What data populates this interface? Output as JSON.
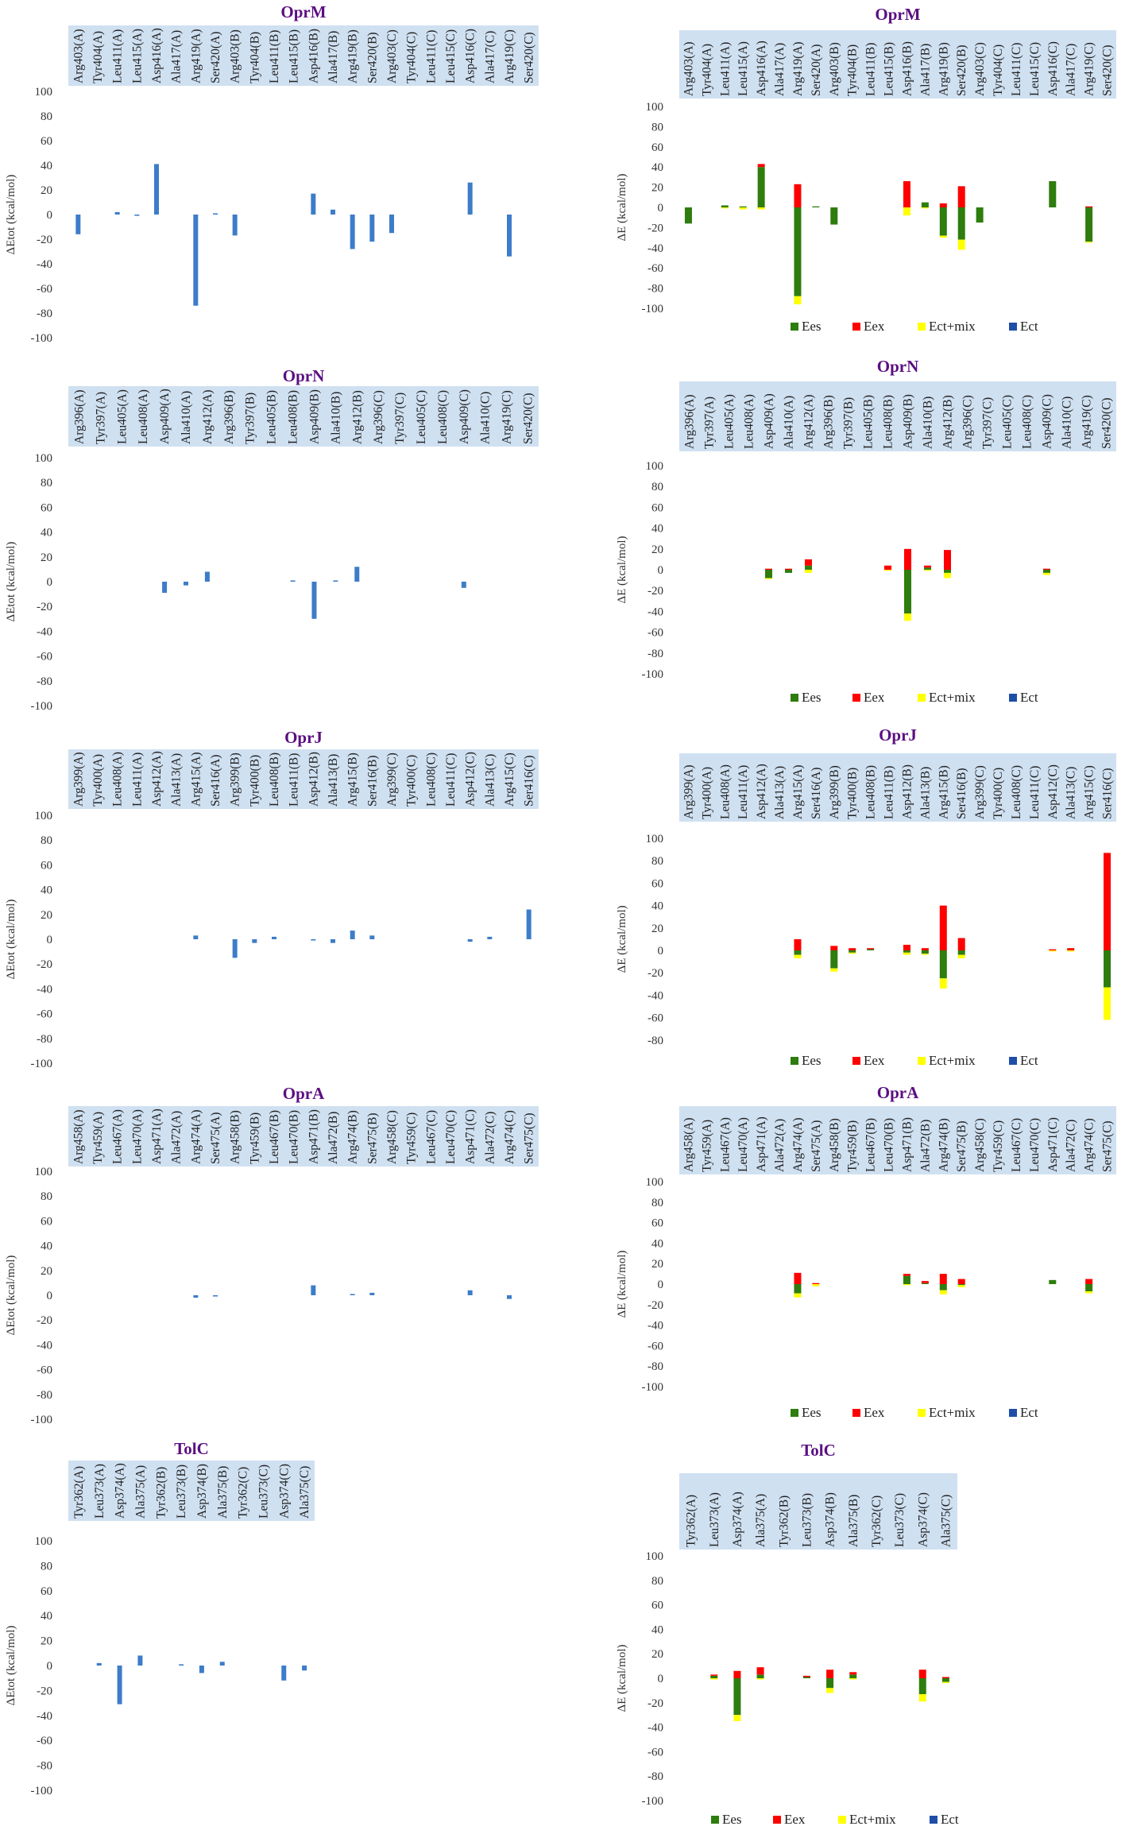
{
  "colors": {
    "bar": "#3d7cc9",
    "Ees": "#2e7d0e",
    "Eex": "#ff0000",
    "Ect+mix": "#ffff00",
    "Ect": "#1f4ea8",
    "labelBand": "#cfe0f1",
    "title": "#5b0f82"
  },
  "chart_data": [
    {
      "id": "oprm-tot",
      "type": "bar",
      "title": "OprM",
      "ylabel": "ΔEtot (kcal/mol)",
      "ylim": [
        -100,
        100
      ],
      "yticks": [
        100,
        80,
        60,
        40,
        20,
        0,
        -20,
        -40,
        -60,
        -80,
        -100
      ],
      "categories": [
        "Arg403(A)",
        "Tyr404(A)",
        "Leu411(A)",
        "Leu415(A)",
        "Asp416(A)",
        "Ala417(A)",
        "Arg419(A)",
        "Ser420(A)",
        "Arg403(B)",
        "Tyr404(B)",
        "Leu411(B)",
        "Leu415(B)",
        "Asp416(B)",
        "Ala417(B)",
        "Arg419(B)",
        "Ser420(B)",
        "Arg403(C)",
        "Tyr404(C)",
        "Leu411(C)",
        "Leu415(C)",
        "Asp416(C)",
        "Ala417(C)",
        "Arg419(C)",
        "Ser420(C)"
      ],
      "values": [
        -16,
        0,
        2,
        -1,
        41,
        0,
        -74,
        1,
        -17,
        0,
        0,
        0,
        17,
        4,
        -28,
        -22,
        -15,
        0,
        0,
        0,
        26,
        0,
        -34,
        0
      ]
    },
    {
      "id": "oprm-comp",
      "type": "bar",
      "stacked": true,
      "title": "OprM",
      "ylabel": "ΔE (kcal/mol)",
      "ylim": [
        -100,
        100
      ],
      "yticks": [
        100,
        80,
        60,
        40,
        20,
        0,
        -20,
        -40,
        -60,
        -80,
        -100
      ],
      "legend": [
        "Ees",
        "Eex",
        "Ect+mix",
        "Ect"
      ],
      "categories": [
        "Arg403(A)",
        "Tyr404(A)",
        "Leu411(A)",
        "Leu415(A)",
        "Asp416(A)",
        "Ala417(A)",
        "Arg419(A)",
        "Ser420(A)",
        "Arg403(B)",
        "Tyr404(B)",
        "Leu411(B)",
        "Leu415(B)",
        "Asp416(B)",
        "Ala417(B)",
        "Arg419(B)",
        "Ser420(B)",
        "Arg403(C)",
        "Tyr404(C)",
        "Leu411(C)",
        "Leu415(C)",
        "Asp416(C)",
        "Ala417(C)",
        "Arg419(C)",
        "Ser420(C)"
      ],
      "series": [
        {
          "name": "Ees",
          "values": [
            -16,
            0,
            2,
            1,
            40,
            0,
            -88,
            1,
            -17,
            0,
            0,
            0,
            0,
            5,
            -28,
            -32,
            -15,
            0,
            0,
            0,
            26,
            0,
            -34,
            0
          ]
        },
        {
          "name": "Eex",
          "values": [
            0,
            0,
            0,
            0,
            3,
            0,
            23,
            0,
            0,
            0,
            0,
            0,
            26,
            0,
            4,
            21,
            0,
            0,
            0,
            0,
            0,
            0,
            1,
            0
          ]
        },
        {
          "name": "Ect+mix",
          "values": [
            0,
            0,
            -1,
            -2,
            -2,
            0,
            -8,
            0,
            0,
            0,
            0,
            0,
            -8,
            -1,
            -2,
            -10,
            0,
            0,
            0,
            0,
            0,
            0,
            -1,
            0
          ]
        },
        {
          "name": "Ect",
          "values": [
            0,
            0,
            0,
            0,
            0,
            0,
            0,
            0,
            0,
            0,
            0,
            0,
            0,
            0,
            0,
            0,
            0,
            0,
            0,
            0,
            0,
            0,
            0,
            0
          ]
        }
      ]
    },
    {
      "id": "oprn-tot",
      "type": "bar",
      "title": "OprN",
      "ylabel": "ΔEtot (kcal/mol)",
      "ylim": [
        -100,
        100
      ],
      "yticks": [
        100,
        80,
        60,
        40,
        20,
        0,
        -20,
        -40,
        -60,
        -80,
        -100
      ],
      "categories": [
        "Arg396(A)",
        "Tyr397(A)",
        "Leu405(A)",
        "Leu408(A)",
        "Asp409(A)",
        "Ala410(A)",
        "Arg412(A)",
        "Arg396(B)",
        "Tyr397(B)",
        "Leu405(B)",
        "Leu408(B)",
        "Asp409(B)",
        "Ala410(B)",
        "Arg412(B)",
        "Arg396(C)",
        "Tyr397(C)",
        "Leu405(C)",
        "Leu408(C)",
        "Asp409(C)",
        "Ala410(C)",
        "Arg419(C)",
        "Ser420(C)"
      ],
      "values": [
        0,
        0,
        0,
        0,
        -9,
        -3,
        8,
        0,
        0,
        0,
        1,
        -30,
        1,
        12,
        0,
        0,
        0,
        0,
        -5,
        0,
        0,
        0
      ]
    },
    {
      "id": "oprn-comp",
      "type": "bar",
      "stacked": true,
      "title": "OprN",
      "ylabel": "ΔE (kcal/mol)",
      "ylim": [
        -100,
        100
      ],
      "yticks": [
        100,
        80,
        60,
        40,
        20,
        0,
        -20,
        -40,
        -60,
        -80,
        -100
      ],
      "legend": [
        "Ees",
        "Eex",
        "Ect+mix",
        "Ect"
      ],
      "categories": [
        "Arg396(A)",
        "Tyr397(A)",
        "Leu405(A)",
        "Leu408(A)",
        "Asp409(A)",
        "Ala410(A)",
        "Arg412(A)",
        "Arg396(B)",
        "Tyr397(B)",
        "Leu405(B)",
        "Leu408(B)",
        "Asp409(B)",
        "Ala410(B)",
        "Arg412(B)",
        "Arg396(C)",
        "Tyr397(C)",
        "Leu405(C)",
        "Leu408(C)",
        "Asp409(C)",
        "Ala410(C)",
        "Arg419(C)",
        "Ser420(C)"
      ],
      "series": [
        {
          "name": "Ees",
          "values": [
            0,
            0,
            0,
            0,
            -8,
            -3,
            4,
            0,
            0,
            0,
            0,
            -42,
            2,
            -3,
            0,
            0,
            0,
            0,
            -3,
            0,
            0,
            0
          ]
        },
        {
          "name": "Eex",
          "values": [
            0,
            0,
            0,
            0,
            1,
            1,
            6,
            0,
            0,
            0,
            4,
            20,
            2,
            19,
            0,
            0,
            0,
            0,
            1,
            0,
            0,
            0
          ]
        },
        {
          "name": "Ect+mix",
          "values": [
            0,
            0,
            0,
            0,
            -1,
            0,
            -3,
            0,
            0,
            0,
            -1,
            -7,
            -1,
            -5,
            0,
            0,
            0,
            0,
            -2,
            0,
            0,
            0
          ]
        },
        {
          "name": "Ect",
          "values": [
            0,
            0,
            0,
            0,
            0,
            0,
            0,
            0,
            0,
            0,
            0,
            0,
            0,
            0,
            0,
            0,
            0,
            0,
            0,
            0,
            0,
            0
          ]
        }
      ]
    },
    {
      "id": "oprj-tot",
      "type": "bar",
      "title": "OprJ",
      "ylabel": "ΔEtot (kcal/mol)",
      "ylim": [
        -100,
        100
      ],
      "yticks": [
        100,
        80,
        60,
        40,
        20,
        0,
        -20,
        -40,
        -60,
        -80,
        -100
      ],
      "categories": [
        "Arg399(A)",
        "Tyr400(A)",
        "Leu408(A)",
        "Leu411(A)",
        "Asp412(A)",
        "Ala413(A)",
        "Arg415(A)",
        "Ser416(A)",
        "Arg399(B)",
        "Tyr400(B)",
        "Leu408(B)",
        "Leu411(B)",
        "Asp412(B)",
        "Ala413(B)",
        "Arg415(B)",
        "Ser416(B)",
        "Arg399(C)",
        "Tyr400(C)",
        "Leu408(C)",
        "Leu411(C)",
        "Asp412(C)",
        "Ala413(C)",
        "Arg415(C)",
        "Ser416(C)"
      ],
      "values": [
        0,
        0,
        0,
        0,
        0,
        0,
        3,
        0,
        -15,
        -3,
        2,
        0,
        -1,
        -3,
        7,
        3,
        0,
        0,
        0,
        0,
        -2,
        2,
        0,
        24
      ]
    },
    {
      "id": "oprj-comp",
      "type": "bar",
      "stacked": true,
      "title": "OprJ",
      "ylabel": "ΔE (kcal/mol)",
      "ylim": [
        -80,
        100
      ],
      "yticks": [
        100,
        80,
        60,
        40,
        20,
        0,
        -20,
        -40,
        -60,
        -80
      ],
      "legend": [
        "Ees",
        "Eex",
        "Ect+mix",
        "Ect"
      ],
      "categories": [
        "Arg399(A)",
        "Tyr400(A)",
        "Leu408(A)",
        "Leu411(A)",
        "Asp412(A)",
        "Ala413(A)",
        "Arg415(A)",
        "Ser416(A)",
        "Arg399(B)",
        "Tyr400(B)",
        "Leu408(B)",
        "Leu411(B)",
        "Asp412(B)",
        "Ala413(B)",
        "Arg415(B)",
        "Ser416(B)",
        "Arg399(C)",
        "Tyr400(C)",
        "Leu408(C)",
        "Leu411(C)",
        "Asp412(C)",
        "Ala413(C)",
        "Arg415(C)",
        "Ser416(C)"
      ],
      "series": [
        {
          "name": "Ees",
          "values": [
            0,
            0,
            0,
            0,
            0,
            0,
            -4,
            0,
            -16,
            -2,
            1,
            0,
            -2,
            -3,
            -25,
            -4,
            0,
            0,
            0,
            0,
            0,
            0,
            0,
            -33
          ]
        },
        {
          "name": "Eex",
          "values": [
            0,
            0,
            0,
            0,
            0,
            0,
            10,
            0,
            4,
            2,
            1,
            0,
            5,
            2,
            40,
            11,
            0,
            0,
            0,
            0,
            1,
            2,
            0,
            87
          ]
        },
        {
          "name": "Ect+mix",
          "values": [
            0,
            0,
            0,
            0,
            0,
            0,
            -3,
            0,
            -3,
            -1,
            0,
            0,
            -2,
            -1,
            -9,
            -3,
            0,
            0,
            0,
            0,
            -1,
            -1,
            0,
            -29
          ]
        },
        {
          "name": "Ect",
          "values": [
            0,
            0,
            0,
            0,
            0,
            0,
            0,
            0,
            0,
            0,
            0,
            0,
            0,
            0,
            0,
            0,
            0,
            0,
            0,
            0,
            0,
            0,
            0,
            0
          ]
        }
      ]
    },
    {
      "id": "opra-tot",
      "type": "bar",
      "title": "OprA",
      "ylabel": "ΔEtot (kcal/mol)",
      "ylim": [
        -100,
        100
      ],
      "yticks": [
        100,
        80,
        60,
        40,
        20,
        0,
        -20,
        -40,
        -60,
        -80,
        -100
      ],
      "categories": [
        "Arg458(A)",
        "Tyr459(A)",
        "Leu467(A)",
        "Leu470(A)",
        "Asp471(A)",
        "Ala472(A)",
        "Arg474(A)",
        "Ser475(A)",
        "Arg458(B)",
        "Tyr459(B)",
        "Leu467(B)",
        "Leu470(B)",
        "Asp471(B)",
        "Ala472(B)",
        "Arg474(B)",
        "Ser475(B)",
        "Arg458(C)",
        "Tyr459(C)",
        "Leu467(C)",
        "Leu470(C)",
        "Asp471(C)",
        "Ala472(C)",
        "Arg474(C)",
        "Ser475(C)"
      ],
      "values": [
        0,
        0,
        0,
        0,
        0,
        0,
        -2,
        -1,
        0,
        0,
        0,
        0,
        8,
        0,
        1,
        2,
        0,
        0,
        0,
        0,
        4,
        0,
        -3,
        0
      ]
    },
    {
      "id": "opra-comp",
      "type": "bar",
      "stacked": true,
      "title": "OprA",
      "ylabel": "ΔE (kcal/mol)",
      "ylim": [
        -100,
        100
      ],
      "yticks": [
        100,
        80,
        60,
        40,
        20,
        0,
        -20,
        -40,
        -60,
        -80,
        -100
      ],
      "legend": [
        "Ees",
        "Eex",
        "Ect+mix",
        "Ect"
      ],
      "categories": [
        "Arg458(A)",
        "Tyr459(A)",
        "Leu467(A)",
        "Leu470(A)",
        "Asp471(A)",
        "Ala472(A)",
        "Arg474(A)",
        "Ser475(A)",
        "Arg458(B)",
        "Tyr459(B)",
        "Leu467(B)",
        "Leu470(B)",
        "Asp471(B)",
        "Ala472(B)",
        "Arg474(B)",
        "Ser475(B)",
        "Arg458(C)",
        "Tyr459(C)",
        "Leu467(C)",
        "Leu470(C)",
        "Asp471(C)",
        "Ala472(C)",
        "Arg474(C)",
        "Ser475(C)"
      ],
      "series": [
        {
          "name": "Ees",
          "values": [
            0,
            0,
            0,
            0,
            0,
            0,
            -9,
            0,
            0,
            0,
            0,
            0,
            8,
            1,
            -6,
            -1,
            0,
            0,
            0,
            0,
            4,
            0,
            -7,
            0
          ]
        },
        {
          "name": "Eex",
          "values": [
            0,
            0,
            0,
            0,
            0,
            0,
            11,
            1,
            0,
            0,
            0,
            0,
            2,
            2,
            10,
            5,
            0,
            0,
            0,
            0,
            0,
            0,
            5,
            0
          ]
        },
        {
          "name": "Ect+mix",
          "values": [
            0,
            0,
            0,
            0,
            0,
            0,
            -4,
            -2,
            0,
            0,
            0,
            0,
            -1,
            0,
            -4,
            -2,
            0,
            0,
            0,
            0,
            0,
            0,
            -2,
            0
          ]
        },
        {
          "name": "Ect",
          "values": [
            0,
            0,
            0,
            0,
            0,
            0,
            0,
            0,
            0,
            0,
            0,
            0,
            0,
            0,
            0,
            0,
            0,
            0,
            0,
            0,
            0,
            0,
            0,
            0
          ]
        }
      ]
    },
    {
      "id": "tolc-tot",
      "type": "bar",
      "title": "TolC",
      "ylabel": "ΔEtot (kcal/mol)",
      "ylim": [
        -100,
        100
      ],
      "yticks": [
        100,
        80,
        60,
        40,
        20,
        0,
        -20,
        -40,
        -60,
        -80,
        -100
      ],
      "categories": [
        "Tyr362(A)",
        "Leu373(A)",
        "Asp374(A)",
        "Ala375(A)",
        "Tyr362(B)",
        "Leu373(B)",
        "Asp374(B)",
        "Ala375(B)",
        "Tyr362(C)",
        "Leu373(C)",
        "Asp374(C)",
        "Ala375(C)"
      ],
      "values": [
        0,
        2,
        -31,
        8,
        0,
        1,
        -6,
        3,
        0,
        0,
        -12,
        -4
      ]
    },
    {
      "id": "tolc-comp",
      "type": "bar",
      "stacked": true,
      "title": "TolC",
      "ylabel": "ΔE (kcal/mol)",
      "ylim": [
        -100,
        100
      ],
      "yticks": [
        100,
        80,
        60,
        40,
        20,
        0,
        -20,
        -40,
        -60,
        -80,
        -100
      ],
      "legend": [
        "Ees",
        "Eex",
        "Ect+mix",
        "Ect"
      ],
      "categories": [
        "Tyr362(A)",
        "Leu373(A)",
        "Asp374(A)",
        "Ala375(A)",
        "Tyr362(B)",
        "Leu373(B)",
        "Asp374(B)",
        "Ala375(B)",
        "Tyr362(C)",
        "Leu373(C)",
        "Asp374(C)",
        "Ala375(C)"
      ],
      "series": [
        {
          "name": "Ees",
          "values": [
            0,
            2,
            -30,
            3,
            0,
            1,
            -8,
            3,
            0,
            0,
            -13,
            -3
          ]
        },
        {
          "name": "Eex",
          "values": [
            0,
            1,
            6,
            6,
            0,
            1,
            7,
            2,
            0,
            0,
            7,
            1
          ]
        },
        {
          "name": "Ect+mix",
          "values": [
            0,
            -1,
            -5,
            -1,
            0,
            0,
            -4,
            -1,
            0,
            0,
            -6,
            -1
          ]
        },
        {
          "name": "Ect",
          "values": [
            0,
            0,
            0,
            0,
            0,
            0,
            0,
            0,
            0,
            0,
            0,
            0
          ]
        }
      ]
    }
  ]
}
